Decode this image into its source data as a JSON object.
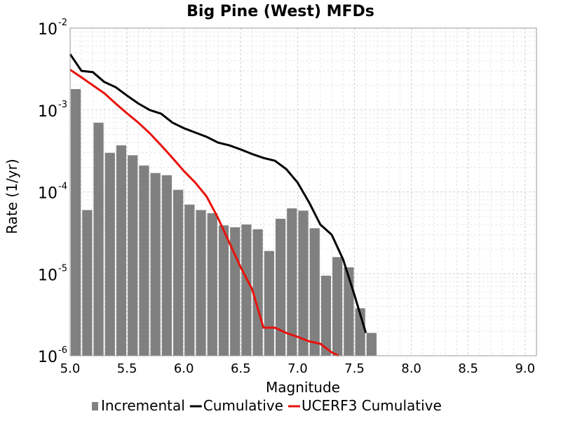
{
  "chart_data": {
    "type": "bar",
    "title": "Big Pine (West) MFDs",
    "xlabel": "Magnitude",
    "ylabel": "Rate (1/yr)",
    "xlim": [
      5.0,
      9.1
    ],
    "ylim": [
      1e-06,
      0.01
    ],
    "yscale": "log",
    "grid": true,
    "legend_position": "bottom",
    "x_ticks": [
      "5.0",
      "5.5",
      "6.0",
      "6.5",
      "7.0",
      "7.5",
      "8.0",
      "8.5",
      "9.0"
    ],
    "y_ticks": [
      {
        "value": 1e-06,
        "base": "10",
        "exp": "-6"
      },
      {
        "value": 1e-05,
        "base": "10",
        "exp": "-5"
      },
      {
        "value": 0.0001,
        "base": "10",
        "exp": "-4"
      },
      {
        "value": 0.001,
        "base": "10",
        "exp": "-3"
      },
      {
        "value": 0.01,
        "base": "10",
        "exp": "-2"
      }
    ],
    "bar_width": 0.1,
    "series": [
      {
        "name": "Incremental",
        "kind": "bar",
        "color": "#808080",
        "x": [
          5.05,
          5.15,
          5.25,
          5.35,
          5.45,
          5.55,
          5.65,
          5.75,
          5.85,
          5.95,
          6.05,
          6.15,
          6.25,
          6.35,
          6.45,
          6.55,
          6.65,
          6.75,
          6.85,
          6.95,
          7.05,
          7.15,
          7.25,
          7.35,
          7.45,
          7.55,
          7.65
        ],
        "values": [
          0.0018,
          6e-05,
          0.0007,
          0.0003,
          0.00037,
          0.00028,
          0.00021,
          0.00017,
          0.00016,
          0.000106,
          7e-05,
          6e-05,
          5.5e-05,
          3.9e-05,
          3.7e-05,
          4e-05,
          3.5e-05,
          1.9e-05,
          4.7e-05,
          6.3e-05,
          5.9e-05,
          3.6e-05,
          9.5e-06,
          1.6e-05,
          1.2e-05,
          3.8e-06,
          1.9e-06
        ]
      },
      {
        "name": "Cumulative",
        "kind": "line",
        "color": "#000000",
        "x": [
          5.0,
          5.1,
          5.2,
          5.3,
          5.4,
          5.5,
          5.6,
          5.7,
          5.8,
          5.9,
          6.0,
          6.1,
          6.2,
          6.3,
          6.4,
          6.5,
          6.6,
          6.7,
          6.8,
          6.9,
          7.0,
          7.1,
          7.2,
          7.3,
          7.4,
          7.5,
          7.6
        ],
        "values": [
          0.0048,
          0.003,
          0.0029,
          0.0022,
          0.0019,
          0.0015,
          0.0012,
          0.001,
          0.0009,
          0.0007,
          0.0006,
          0.00053,
          0.00047,
          0.0004,
          0.00037,
          0.00033,
          0.00029,
          0.00026,
          0.00024,
          0.00019,
          0.00013,
          7.5e-05,
          4e-05,
          3e-05,
          1.5e-05,
          5.5e-06,
          1.9e-06
        ]
      },
      {
        "name": "UCERF3 Cumulative",
        "kind": "line",
        "color": "#e8120c",
        "x": [
          5.0,
          5.1,
          5.2,
          5.3,
          5.4,
          5.5,
          5.6,
          5.7,
          5.8,
          5.9,
          6.0,
          6.1,
          6.2,
          6.3,
          6.4,
          6.5,
          6.6,
          6.7,
          6.8,
          6.9,
          7.0,
          7.1,
          7.2,
          7.3,
          7.36
        ],
        "values": [
          0.0031,
          0.0025,
          0.002,
          0.0016,
          0.0012,
          0.00091,
          0.0007,
          0.00052,
          0.00037,
          0.00026,
          0.00018,
          0.00013,
          8.8e-05,
          4.8e-05,
          2.4e-05,
          1.2e-05,
          6.5e-06,
          2.2e-06,
          2.2e-06,
          1.9e-06,
          1.7e-06,
          1.5e-06,
          1.4e-06,
          1.1e-06,
          1e-06
        ]
      }
    ]
  }
}
